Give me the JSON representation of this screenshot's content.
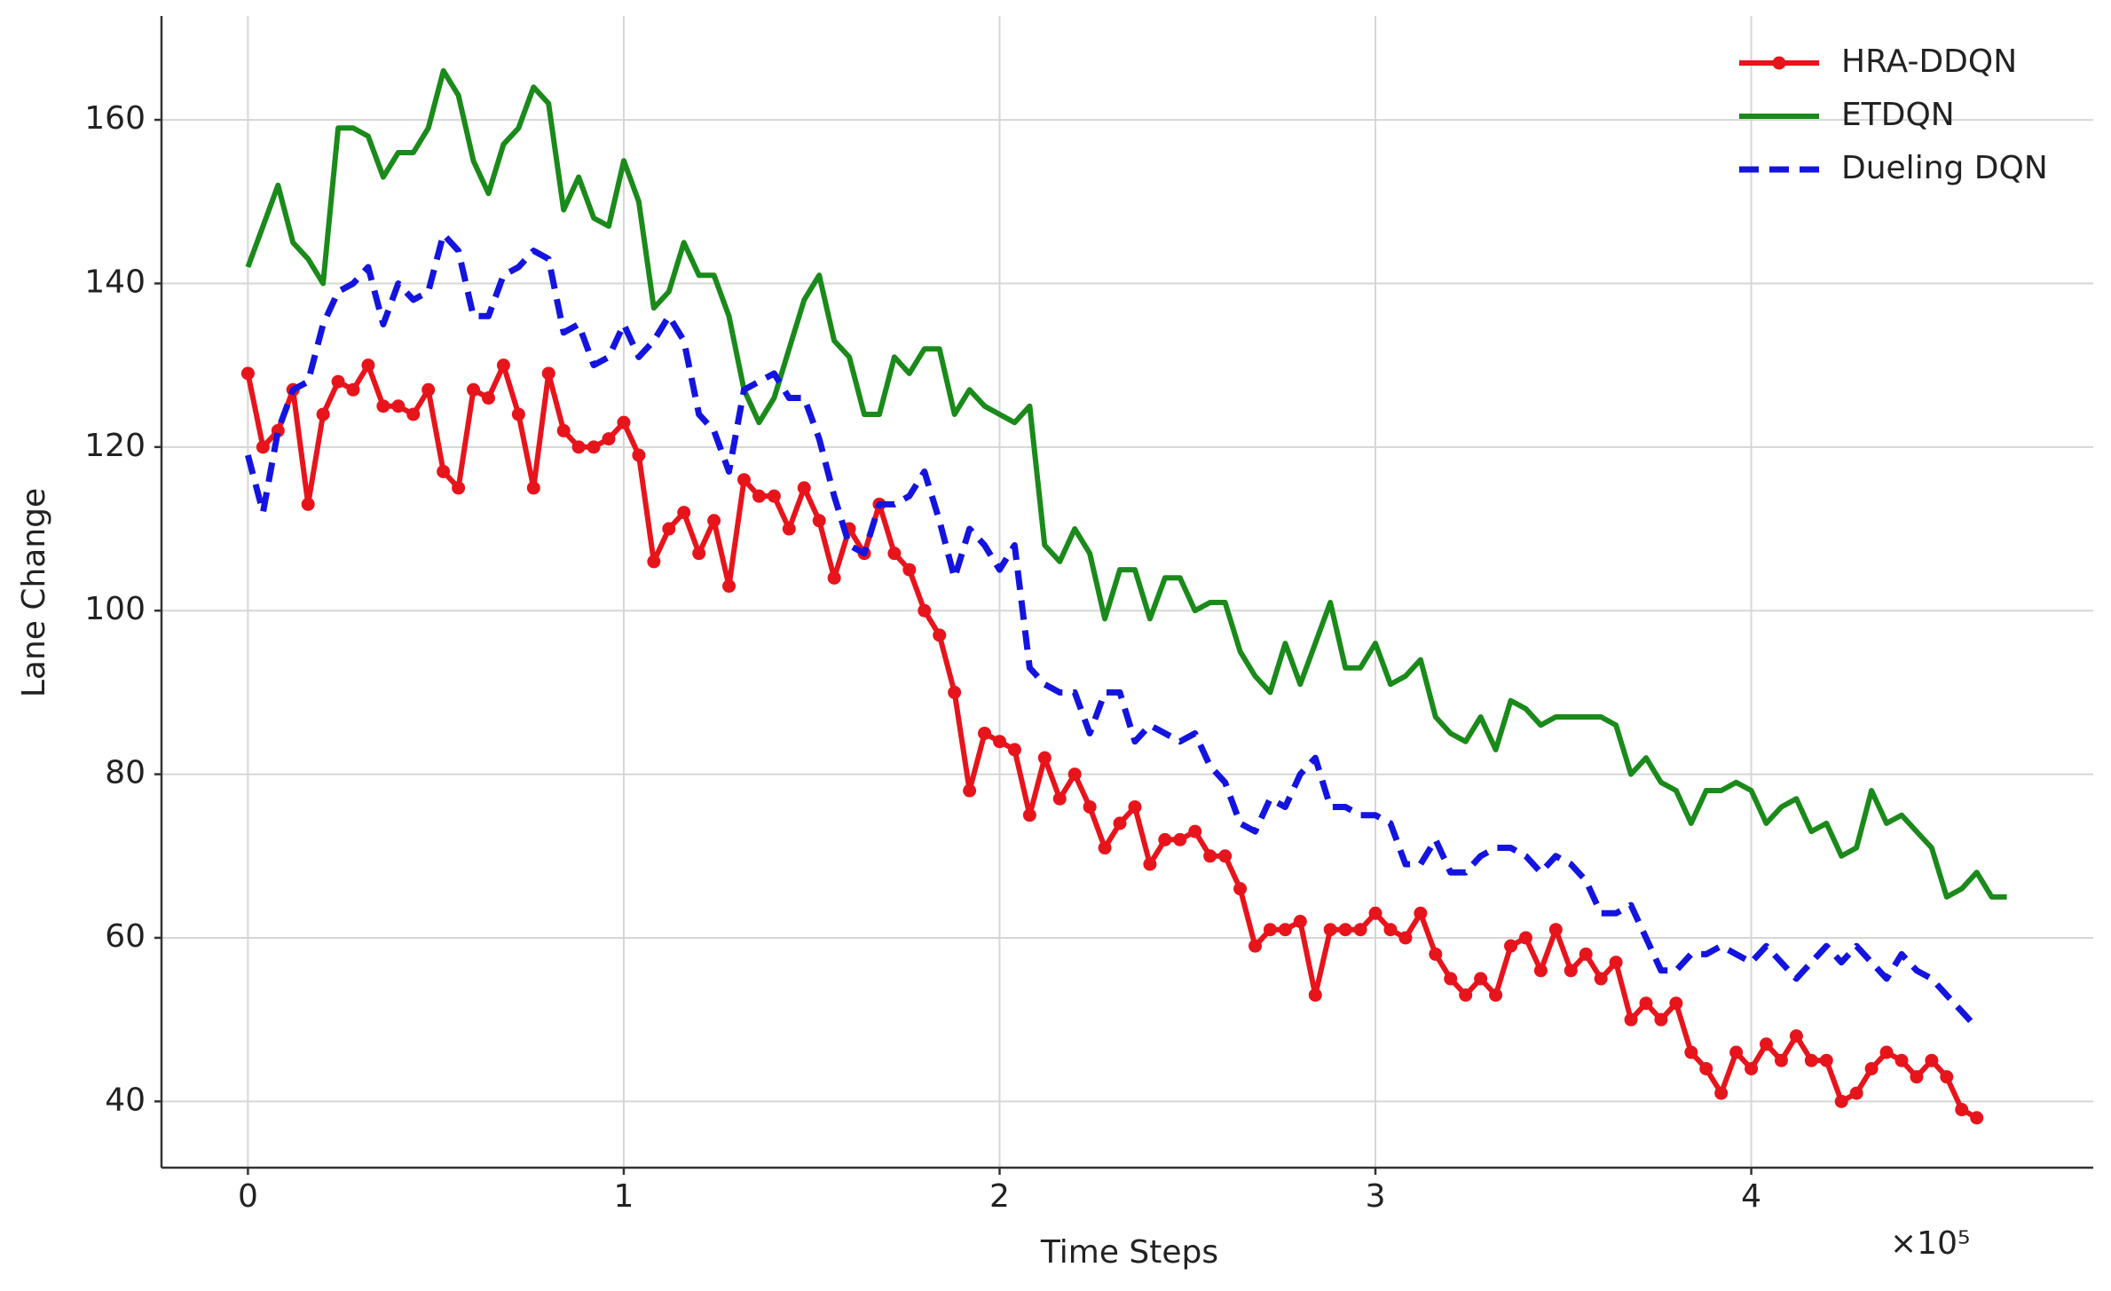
{
  "chart_data": {
    "type": "line",
    "xlabel": "Time Steps",
    "ylabel": "Lane Change",
    "x_multiplier_label": "×10⁵",
    "x": [
      0,
      0.04,
      0.08,
      0.12,
      0.16,
      0.2,
      0.24,
      0.28,
      0.32,
      0.36,
      0.4,
      0.44,
      0.48,
      0.52,
      0.56,
      0.6,
      0.64,
      0.68,
      0.72,
      0.76,
      0.8,
      0.84,
      0.88,
      0.92,
      0.96,
      1,
      1.04,
      1.08,
      1.12,
      1.16,
      1.2,
      1.24,
      1.28,
      1.32,
      1.36,
      1.4,
      1.44,
      1.48,
      1.52,
      1.56,
      1.6,
      1.64,
      1.68,
      1.72,
      1.76,
      1.8,
      1.84,
      1.88,
      1.92,
      1.96,
      2,
      2.04,
      2.08,
      2.12,
      2.16,
      2.2,
      2.24,
      2.28,
      2.32,
      2.36,
      2.4,
      2.44,
      2.48,
      2.52,
      2.56,
      2.6,
      2.64,
      2.68,
      2.72,
      2.76,
      2.8,
      2.84,
      2.88,
      2.92,
      2.96,
      3,
      3.04,
      3.08,
      3.12,
      3.16,
      3.2,
      3.24,
      3.28,
      3.32,
      3.36,
      3.4,
      3.44,
      3.48,
      3.52,
      3.56,
      3.6,
      3.64,
      3.68,
      3.72,
      3.76,
      3.8,
      3.84,
      3.88,
      3.92,
      3.96,
      4,
      4.04,
      4.08,
      4.12,
      4.16,
      4.2,
      4.24,
      4.28,
      4.32,
      4.36,
      4.4,
      4.44,
      4.48,
      4.52,
      4.56,
      4.6,
      4.64,
      4.68
    ],
    "series": [
      {
        "name": "HRA-DDQN",
        "color": "#e8141c",
        "marker": "o",
        "dashed": false,
        "values": [
          129,
          120,
          122,
          127,
          113,
          124,
          128,
          127,
          130,
          125,
          125,
          124,
          127,
          117,
          115,
          127,
          126,
          130,
          124,
          115,
          129,
          122,
          120,
          120,
          121,
          123,
          119,
          106,
          110,
          112,
          107,
          111,
          103,
          116,
          114,
          114,
          110,
          115,
          111,
          104,
          110,
          107,
          113,
          107,
          105,
          100,
          97,
          90,
          78,
          85,
          84,
          83,
          75,
          82,
          77,
          80,
          76,
          71,
          74,
          76,
          69,
          72,
          72,
          73,
          70,
          70,
          66,
          59,
          61,
          61,
          62,
          53,
          61,
          61,
          61,
          63,
          61,
          60,
          63,
          58,
          55,
          53,
          55,
          53,
          59,
          60,
          56,
          61,
          56,
          58,
          55,
          57,
          50,
          52,
          50,
          52,
          46,
          44,
          41,
          46,
          44,
          47,
          45,
          48,
          45,
          45,
          40,
          41,
          44,
          46,
          45,
          43,
          45,
          43,
          39,
          38,
          null,
          null
        ]
      },
      {
        "name": "ETDQN",
        "color": "#1a8a1a",
        "marker": null,
        "dashed": false,
        "values": [
          142,
          147,
          152,
          145,
          143,
          140,
          159,
          159,
          158,
          153,
          156,
          156,
          159,
          166,
          163,
          155,
          151,
          157,
          159,
          164,
          162,
          149,
          153,
          148,
          147,
          155,
          150,
          137,
          139,
          145,
          141,
          141,
          136,
          127,
          123,
          126,
          132,
          138,
          141,
          133,
          131,
          124,
          124,
          131,
          129,
          132,
          132,
          124,
          127,
          125,
          124,
          123,
          125,
          108,
          106,
          110,
          107,
          99,
          105,
          105,
          99,
          104,
          104,
          100,
          101,
          101,
          95,
          92,
          90,
          96,
          91,
          96,
          101,
          93,
          93,
          96,
          91,
          92,
          94,
          87,
          85,
          84,
          87,
          83,
          89,
          88,
          86,
          87,
          87,
          87,
          87,
          86,
          80,
          82,
          79,
          78,
          74,
          78,
          78,
          79,
          78,
          74,
          76,
          77,
          73,
          74,
          70,
          71,
          78,
          74,
          75,
          73,
          71,
          65,
          66,
          68,
          65,
          65
        ]
      },
      {
        "name": "Dueling DQN",
        "color": "#1414e0",
        "marker": null,
        "dashed": true,
        "values": [
          119,
          112,
          122,
          127,
          128,
          135,
          139,
          140,
          142,
          135,
          140,
          138,
          139,
          146,
          144,
          136,
          136,
          141,
          142,
          144,
          143,
          134,
          135,
          130,
          131,
          135,
          131,
          133,
          136,
          133,
          124,
          122,
          117,
          127,
          128,
          129,
          126,
          126,
          121,
          114,
          108,
          107,
          113,
          113,
          114,
          117,
          111,
          104,
          110,
          108,
          105,
          108,
          93,
          91,
          90,
          90,
          85,
          90,
          90,
          84,
          86,
          85,
          84,
          85,
          81,
          79,
          74,
          73,
          77,
          76,
          80,
          82,
          76,
          76,
          75,
          75,
          74,
          69,
          69,
          72,
          68,
          68,
          70,
          71,
          71,
          70,
          68,
          70,
          69,
          67,
          63,
          63,
          64,
          60,
          56,
          56,
          58,
          58,
          59,
          58,
          57,
          59,
          57,
          55,
          57,
          59,
          57,
          59,
          57,
          55,
          58,
          56,
          55,
          53,
          51,
          49,
          null,
          null
        ]
      }
    ],
    "xlim": [
      -0.23,
      4.91
    ],
    "ylim": [
      31.9,
      172.7
    ],
    "xticks": [
      0,
      1,
      2,
      3,
      4
    ],
    "yticks": [
      40,
      60,
      80,
      100,
      120,
      140,
      160
    ],
    "grid": true,
    "legend": "upper right"
  }
}
